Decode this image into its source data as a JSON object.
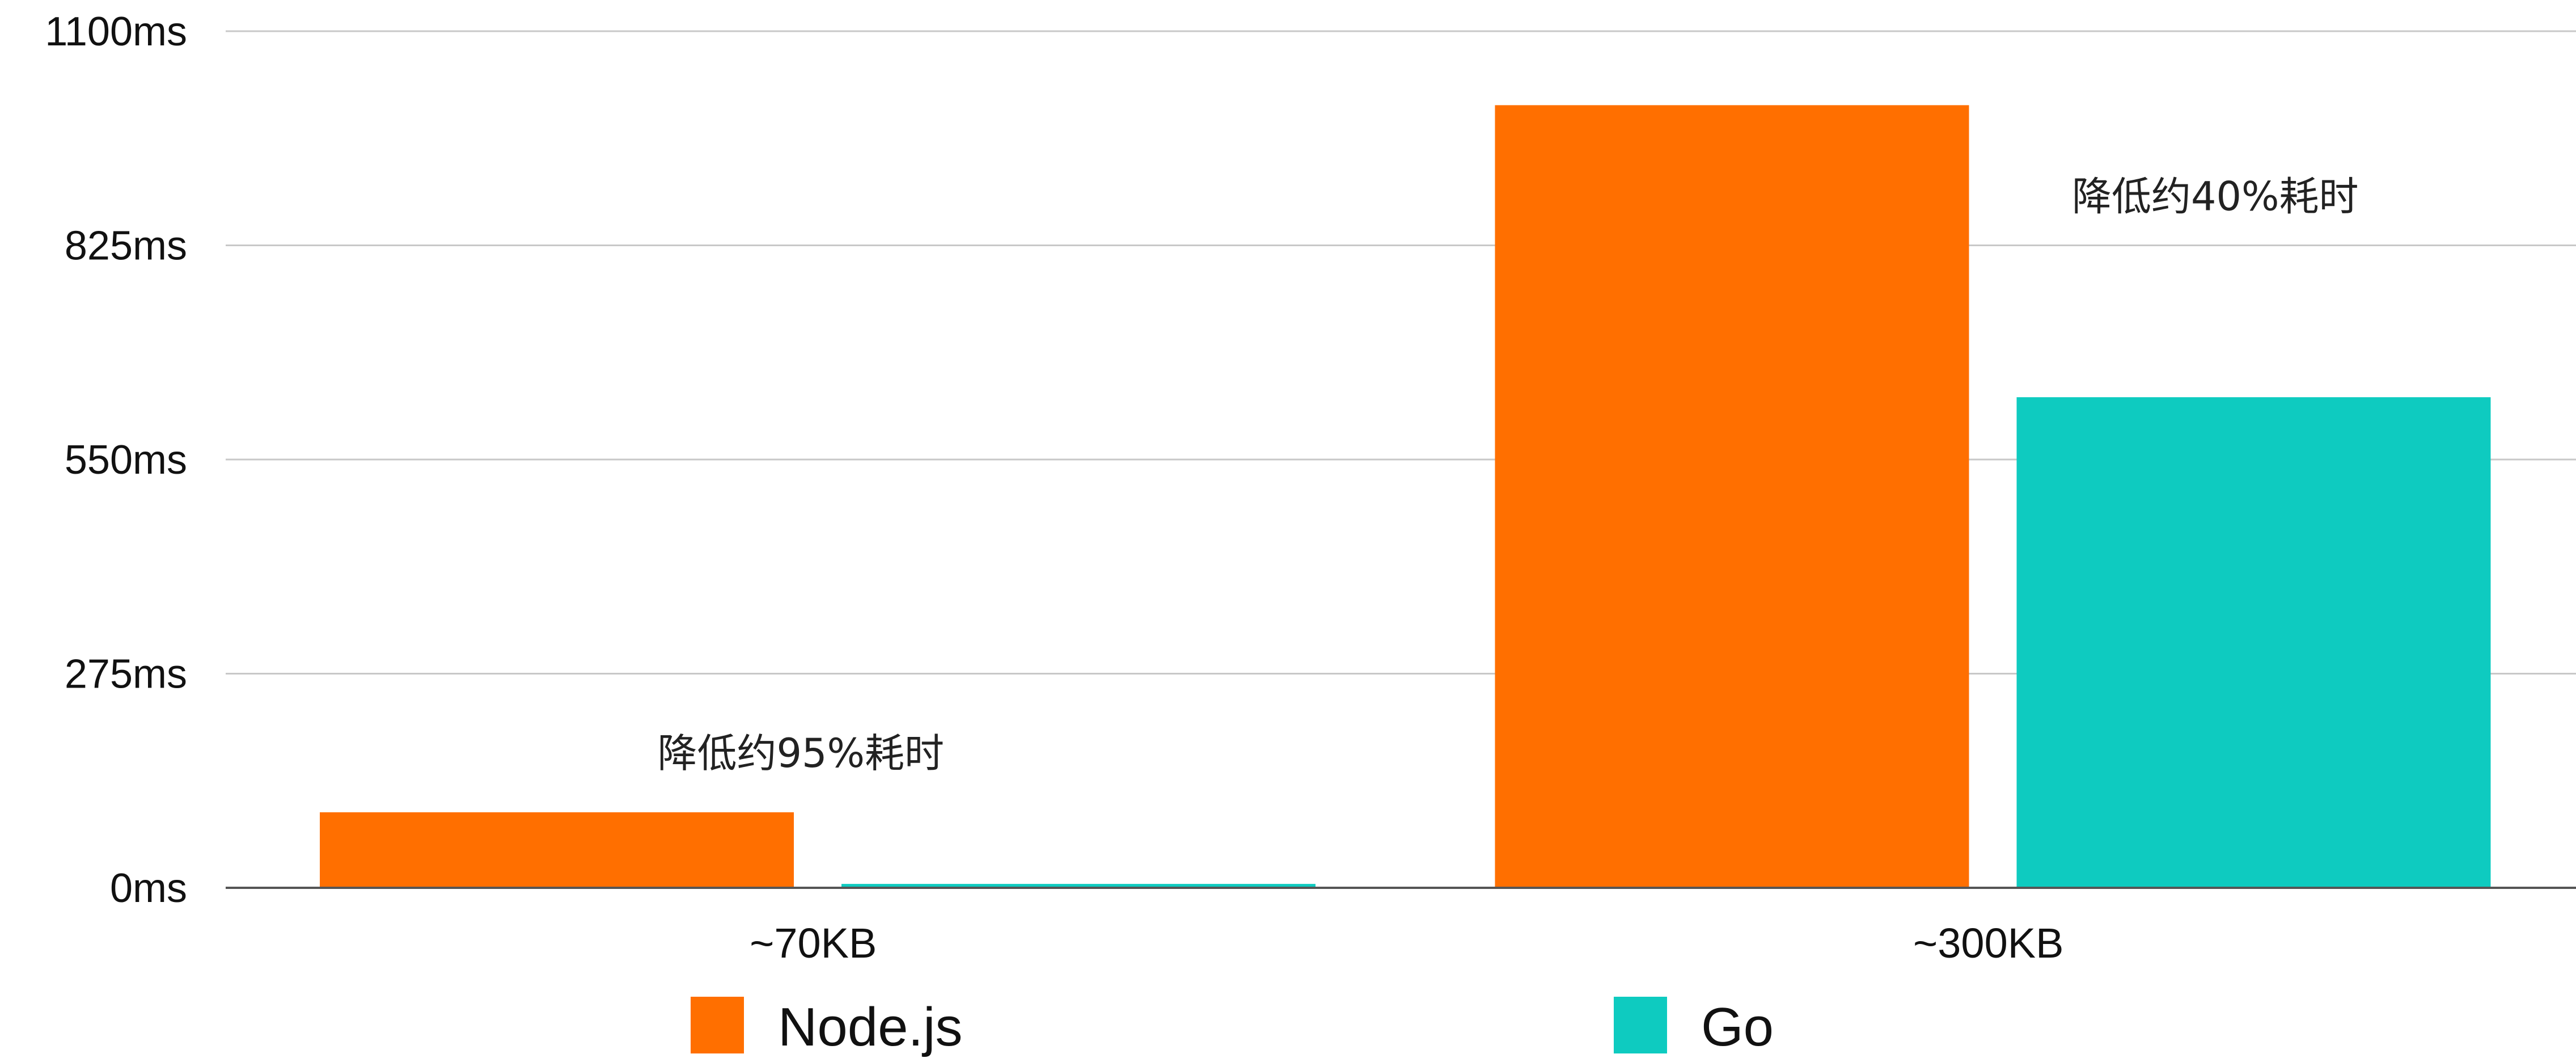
{
  "chart_data": {
    "type": "bar",
    "title": "",
    "xlabel": "",
    "ylabel": "",
    "categories": [
      "~70KB",
      "~300KB"
    ],
    "series": [
      {
        "name": "Node.js",
        "color": "#ff6f00",
        "values": [
          97,
          1005
        ]
      },
      {
        "name": "Go",
        "color": "#0ecbc0",
        "values": [
          5,
          630
        ]
      }
    ],
    "ylim": [
      0,
      1100
    ],
    "y_ticks": [
      0,
      275,
      550,
      825,
      1100
    ],
    "y_tick_labels": [
      "0ms",
      "275ms",
      "550ms",
      "825ms",
      "1100ms"
    ],
    "grid": true,
    "legend_position": "bottom",
    "annotations": [
      {
        "text": "降低约95%耗时",
        "category": "~70KB",
        "value": 155
      },
      {
        "text": "降低约40%耗时",
        "category": "~300KB",
        "value": 870
      }
    ]
  }
}
